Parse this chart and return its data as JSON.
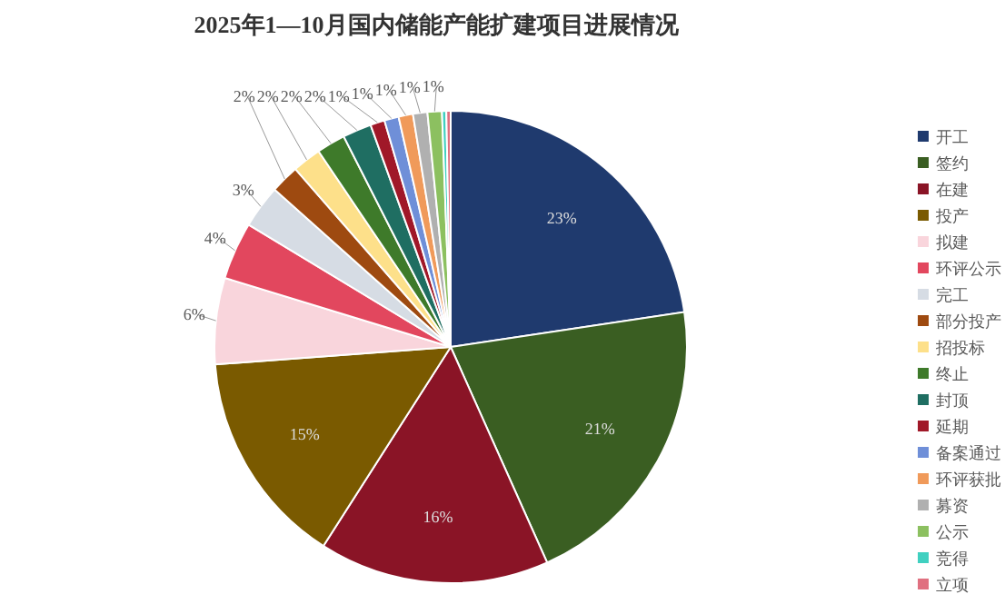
{
  "chart_data": {
    "type": "pie",
    "title": "2025年1—10月国内储能产能扩建项目进展情况",
    "legend": "right",
    "categories": [
      "开工",
      "签约",
      "在建",
      "投产",
      "拟建",
      "环评公示",
      "完工",
      "部分投产",
      "招投标",
      "终止",
      "封顶",
      "延期",
      "备案通过",
      "环评获批",
      "募资",
      "公示",
      "竞得",
      "立项"
    ],
    "values": [
      23,
      21,
      16,
      15,
      6,
      4,
      3,
      2,
      2,
      2,
      2,
      1,
      1,
      1,
      1,
      1,
      0.3,
      0.3
    ],
    "value_labels": [
      "23%",
      "21%",
      "16%",
      "15%",
      "6%",
      "4%",
      "3%",
      "2%",
      "2%",
      "2%",
      "2%",
      "1%",
      "1%",
      "1%",
      "1%",
      "1%",
      null,
      null
    ],
    "colors": [
      "#1f3a6e",
      "#3a5e22",
      "#8a1426",
      "#7a5a00",
      "#f9d5dc",
      "#e2475e",
      "#d6dce4",
      "#9e4a10",
      "#fde08a",
      "#3e7a2a",
      "#1f6e62",
      "#a01828",
      "#6f8fd8",
      "#f09a5a",
      "#b0b0b0",
      "#8cc060",
      "#40d0c0",
      "#e07080"
    ]
  }
}
